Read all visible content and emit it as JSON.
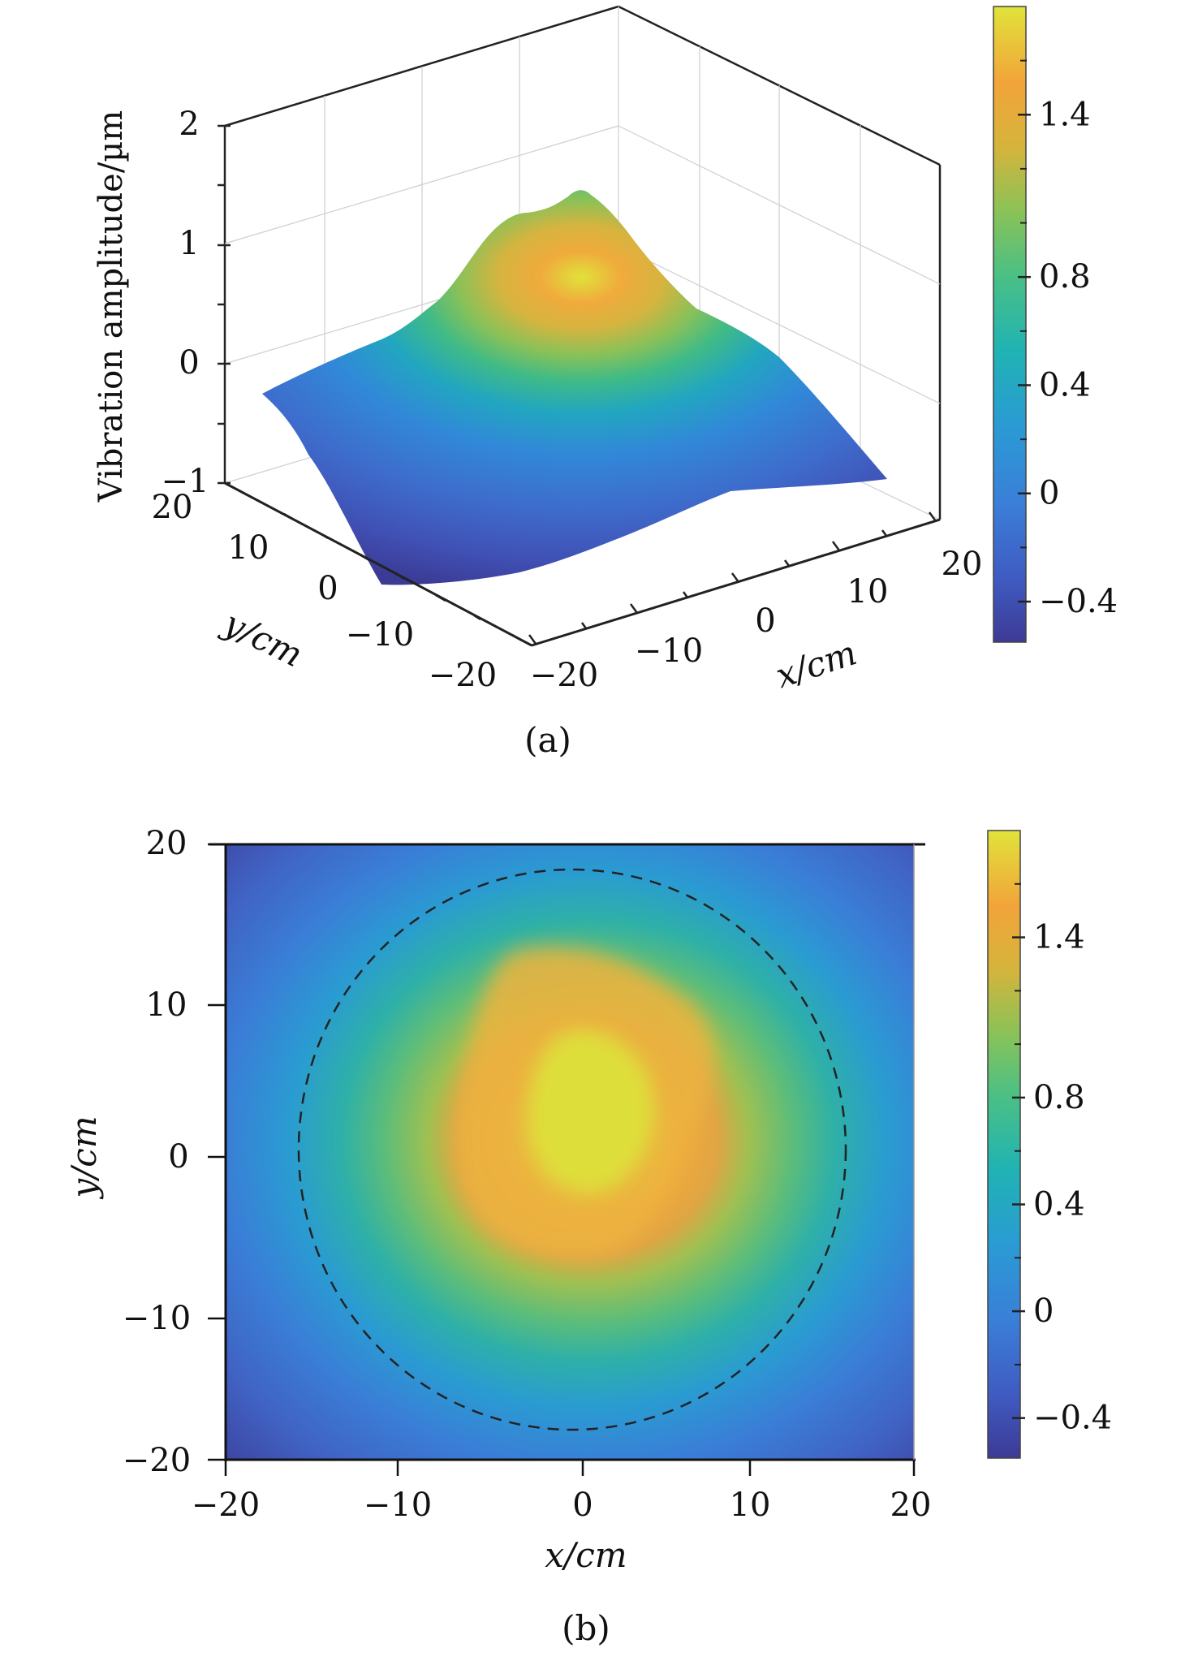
{
  "chart_data": [
    {
      "type": "surface",
      "panel_label": "(a)",
      "zlabel": "Vibration amplitude/µm",
      "xlabel": "x/cm",
      "ylabel": "y/cm",
      "xlim": [
        -20,
        20
      ],
      "ylim": [
        -20,
        20
      ],
      "zlim": [
        -1,
        2
      ],
      "x_ticks": [
        "−20",
        "−10",
        "0",
        "10",
        "20"
      ],
      "y_ticks": [
        "20",
        "10",
        "0",
        "−10",
        "−20"
      ],
      "z_ticks": [
        "2",
        "1",
        "0",
        "−1"
      ],
      "colormap": "parula",
      "clim": [
        -0.55,
        1.8
      ],
      "colorbar_ticks": [
        "1.4",
        "0.8",
        "0.4",
        "0",
        "−0.4"
      ],
      "colorbar_tick_values": [
        1.4,
        0.8,
        0.4,
        0,
        -0.4
      ],
      "peak": {
        "x": 0,
        "y": 0,
        "value": 1.8
      },
      "corner_values": {
        "x-20_y-20": -0.55,
        "x20_y20": -0.1,
        "x-20_y20": -0.35,
        "x20_y-20": -0.3
      },
      "grid": true
    },
    {
      "type": "heatmap",
      "panel_label": "(b)",
      "xlabel": "x/cm",
      "ylabel": "y/cm",
      "xlim": [
        -20,
        20
      ],
      "ylim": [
        -20,
        20
      ],
      "x_ticks": [
        "−20",
        "−10",
        "0",
        "10",
        "20"
      ],
      "y_ticks": [
        "20",
        "10",
        "0",
        "−10",
        "−20"
      ],
      "colormap": "parula",
      "clim": [
        -0.55,
        1.8
      ],
      "colorbar_ticks": [
        "1.4",
        "0.8",
        "0.4",
        "0",
        "−0.4"
      ],
      "colorbar_tick_values": [
        1.4,
        0.8,
        0.4,
        0,
        -0.4
      ],
      "peak": {
        "x": 0,
        "y": 0,
        "value": 1.8
      },
      "dashed_circle": {
        "center_x": 0,
        "center_y": 1,
        "radius": 18.8
      }
    }
  ]
}
